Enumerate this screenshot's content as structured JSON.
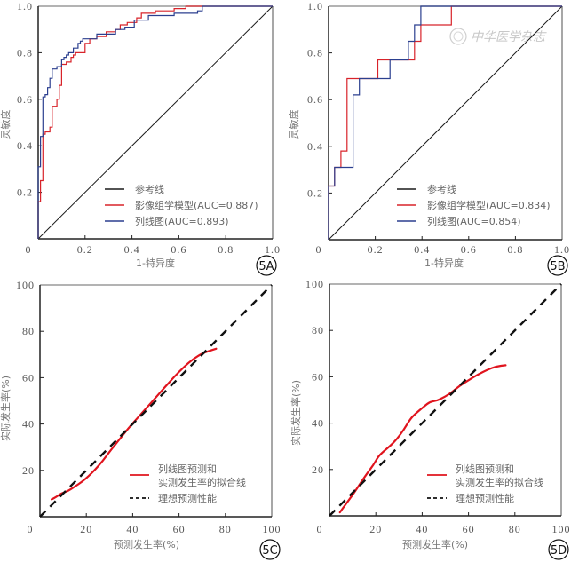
{
  "figure": {
    "watermark": "中华医学杂志",
    "colors": {
      "reference": "#1a1a1a",
      "radiomics": "#d8232a",
      "nomogram": "#2b3f8f",
      "calibration_fit": "#e0141e",
      "ideal": "#111111",
      "axis": "#222222"
    }
  },
  "chart_data": [
    {
      "id": "5A",
      "panel_label": "5A",
      "type": "line",
      "subtype": "roc-step",
      "xlabel": "1-特异度",
      "ylabel": "灵敏度",
      "xlim": [
        0,
        1
      ],
      "ylim": [
        0,
        1
      ],
      "x_ticks": [
        "0",
        "0.2",
        "0.4",
        "0.6",
        "0.8",
        "1.0"
      ],
      "y_ticks": [
        "0.2",
        "0.4",
        "0.6",
        "0.8",
        "1.0"
      ],
      "grid": false,
      "legend_position": "bottom-right",
      "legend": [
        "参考线",
        "影像组学模型(AUC=0.887)",
        "列线图(AUC=0.893)"
      ],
      "series": [
        {
          "name": "参考线",
          "key": "reference",
          "style": "solid",
          "x": [
            0,
            1
          ],
          "y": [
            0,
            1
          ]
        },
        {
          "name": "影像组学模型(AUC=0.887)",
          "key": "radiomics",
          "style": "step",
          "x": [
            0,
            0,
            0.01,
            0.01,
            0.02,
            0.02,
            0.03,
            0.03,
            0.05,
            0.05,
            0.06,
            0.06,
            0.08,
            0.08,
            0.09,
            0.09,
            0.1,
            0.1,
            0.12,
            0.12,
            0.14,
            0.14,
            0.15,
            0.15,
            0.16,
            0.16,
            0.2,
            0.2,
            0.22,
            0.22,
            0.25,
            0.25,
            0.29,
            0.29,
            0.33,
            0.33,
            0.35,
            0.35,
            0.38,
            0.38,
            0.42,
            0.42,
            0.44,
            0.44,
            0.5,
            0.5,
            0.58,
            0.58,
            0.63,
            0.63,
            0.71,
            0.71,
            1.0
          ],
          "y": [
            0,
            0.16,
            0.16,
            0.25,
            0.25,
            0.45,
            0.45,
            0.46,
            0.46,
            0.48,
            0.48,
            0.57,
            0.57,
            0.6,
            0.6,
            0.66,
            0.66,
            0.75,
            0.75,
            0.76,
            0.76,
            0.78,
            0.78,
            0.79,
            0.79,
            0.8,
            0.8,
            0.84,
            0.84,
            0.86,
            0.86,
            0.87,
            0.87,
            0.89,
            0.89,
            0.9,
            0.9,
            0.92,
            0.92,
            0.93,
            0.93,
            0.95,
            0.95,
            0.97,
            0.97,
            0.98,
            0.98,
            0.99,
            0.99,
            1.0,
            1.0,
            1.0,
            1.0
          ]
        },
        {
          "name": "列线图(AUC=0.893)",
          "key": "nomogram",
          "style": "step",
          "x": [
            0,
            0,
            0.01,
            0.01,
            0.02,
            0.02,
            0.03,
            0.03,
            0.04,
            0.04,
            0.05,
            0.05,
            0.06,
            0.06,
            0.08,
            0.08,
            0.1,
            0.1,
            0.11,
            0.11,
            0.12,
            0.12,
            0.13,
            0.13,
            0.15,
            0.15,
            0.17,
            0.17,
            0.18,
            0.18,
            0.19,
            0.19,
            0.25,
            0.25,
            0.33,
            0.33,
            0.37,
            0.37,
            0.41,
            0.41,
            0.47,
            0.47,
            0.58,
            0.58,
            0.68,
            0.68,
            0.7,
            0.7,
            1.0
          ],
          "y": [
            0,
            0.31,
            0.31,
            0.44,
            0.44,
            0.61,
            0.61,
            0.62,
            0.62,
            0.65,
            0.65,
            0.69,
            0.69,
            0.73,
            0.73,
            0.74,
            0.74,
            0.77,
            0.77,
            0.78,
            0.78,
            0.79,
            0.79,
            0.8,
            0.8,
            0.82,
            0.82,
            0.84,
            0.84,
            0.85,
            0.85,
            0.86,
            0.86,
            0.88,
            0.88,
            0.9,
            0.9,
            0.91,
            0.91,
            0.94,
            0.94,
            0.96,
            0.96,
            0.97,
            0.97,
            0.98,
            0.98,
            1.0,
            1.0
          ]
        }
      ]
    },
    {
      "id": "5B",
      "panel_label": "5B",
      "type": "line",
      "subtype": "roc-step",
      "xlabel": "1-特异度",
      "ylabel": "灵敏度",
      "xlim": [
        0,
        1
      ],
      "ylim": [
        0,
        1
      ],
      "x_ticks": [
        "0",
        "0.2",
        "0.4",
        "0.6",
        "0.8",
        "1.0"
      ],
      "y_ticks": [
        "0.2",
        "0.4",
        "0.6",
        "0.8",
        "1.0"
      ],
      "grid": false,
      "legend_position": "bottom-right",
      "legend": [
        "参考线",
        "影像组学模型(AUC=0.834)",
        "列线图(AUC=0.854)"
      ],
      "series": [
        {
          "name": "参考线",
          "key": "reference",
          "style": "solid",
          "x": [
            0,
            1
          ],
          "y": [
            0,
            1
          ]
        },
        {
          "name": "影像组学模型(AUC=0.834)",
          "key": "radiomics",
          "style": "step",
          "x": [
            0,
            0,
            0.026,
            0.026,
            0.053,
            0.053,
            0.079,
            0.079,
            0.211,
            0.211,
            0.368,
            0.368,
            0.395,
            0.395,
            0.526,
            0.526,
            1.0
          ],
          "y": [
            0,
            0.23,
            0.23,
            0.31,
            0.31,
            0.38,
            0.38,
            0.69,
            0.69,
            0.77,
            0.77,
            0.85,
            0.85,
            0.92,
            0.92,
            1.0,
            1.0
          ]
        },
        {
          "name": "列线图(AUC=0.854)",
          "key": "nomogram",
          "style": "step",
          "x": [
            0,
            0,
            0.026,
            0.026,
            0.105,
            0.105,
            0.132,
            0.132,
            0.263,
            0.263,
            0.342,
            0.342,
            0.368,
            0.368,
            0.395,
            0.395,
            1.0
          ],
          "y": [
            0,
            0.23,
            0.23,
            0.31,
            0.31,
            0.62,
            0.62,
            0.69,
            0.69,
            0.77,
            0.77,
            0.85,
            0.85,
            0.92,
            0.92,
            1.0,
            1.0
          ]
        }
      ]
    },
    {
      "id": "5C",
      "panel_label": "5C",
      "type": "line",
      "subtype": "calibration",
      "xlabel": "预测发生率(%)",
      "ylabel": "实际发生率(%)",
      "xlim": [
        0,
        100
      ],
      "ylim": [
        0,
        100
      ],
      "x_ticks": [
        "0",
        "20",
        "40",
        "60",
        "80",
        "100"
      ],
      "y_ticks": [
        "20",
        "40",
        "60",
        "80",
        "100"
      ],
      "grid": false,
      "legend_position": "bottom-right",
      "legend": [
        "列线图预测和\n实测发生率的拟合线",
        "理想预测性能"
      ],
      "legend_lines": [
        [
          "列线图预测和",
          "实测发生率的拟合线"
        ],
        [
          "理想预测性能"
        ]
      ],
      "series": [
        {
          "name": "列线图预测和实测发生率的拟合线",
          "key": "calibration_fit",
          "style": "solid",
          "x": [
            5,
            7,
            9,
            12,
            15,
            18,
            21,
            24,
            27,
            30,
            34,
            38,
            42,
            46,
            50,
            54,
            58,
            62,
            66,
            70,
            73,
            76
          ],
          "y": [
            7.5,
            8.5,
            10,
            11,
            13,
            15,
            17.5,
            20.5,
            24,
            28,
            33,
            38,
            42.5,
            47,
            51.5,
            56,
            60.5,
            64.5,
            68,
            70.5,
            71.5,
            72.5
          ]
        },
        {
          "name": "理想预测性能",
          "key": "ideal",
          "style": "dashed",
          "x": [
            0,
            100
          ],
          "y": [
            0,
            100
          ]
        }
      ]
    },
    {
      "id": "5D",
      "panel_label": "5D",
      "type": "line",
      "subtype": "calibration",
      "xlabel": "预测发生率(%)",
      "ylabel": "实际发生率(%)",
      "xlim": [
        0,
        100
      ],
      "ylim": [
        0,
        100
      ],
      "x_ticks": [
        "0",
        "20",
        "40",
        "60",
        "80",
        "100"
      ],
      "y_ticks": [
        "20",
        "40",
        "60",
        "80",
        "100"
      ],
      "grid": false,
      "legend_position": "bottom-right",
      "legend": [
        "列线图预测和\n实测发生率的拟合线",
        "理想预测性能"
      ],
      "legend_lines": [
        [
          "列线图预测和",
          "实测发生率的拟合线"
        ],
        [
          "理想预测性能"
        ]
      ],
      "series": [
        {
          "name": "列线图预测和实测发生率的拟合线",
          "key": "calibration_fit",
          "style": "solid",
          "x": [
            4.5,
            7,
            10,
            13,
            16,
            19,
            21,
            23,
            26,
            29,
            32,
            35,
            37,
            40,
            43,
            45,
            47,
            50,
            53,
            56,
            60,
            64,
            68,
            72,
            76
          ],
          "y": [
            1.5,
            5,
            9,
            13.5,
            18,
            22,
            25.5,
            27.5,
            30,
            33,
            37,
            42,
            44,
            46.5,
            49,
            49.5,
            50,
            51.5,
            53.5,
            56,
            58.5,
            61,
            63,
            64.5,
            65
          ]
        },
        {
          "name": "理想预测性能",
          "key": "ideal",
          "style": "dashed",
          "x": [
            0,
            100
          ],
          "y": [
            0,
            100
          ]
        }
      ]
    }
  ]
}
